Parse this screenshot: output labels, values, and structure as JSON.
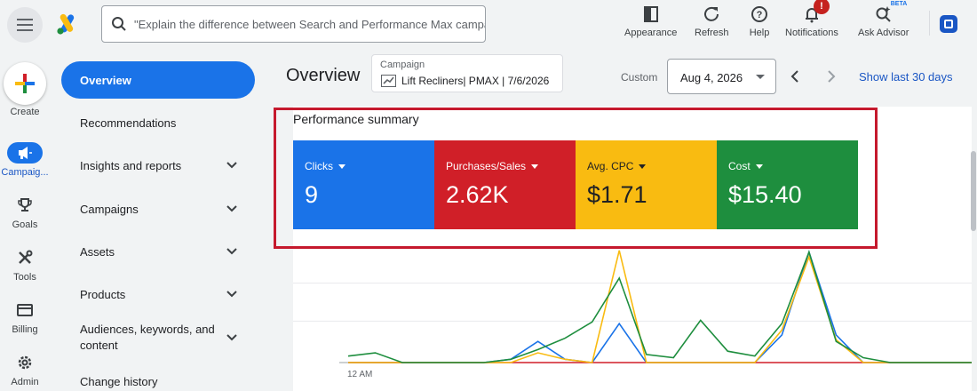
{
  "search": {
    "placeholder": "\"Explain the difference between Search and Performance Max campaigns.\""
  },
  "toolbar": {
    "appearance": "Appearance",
    "refresh": "Refresh",
    "help": "Help",
    "notifications": "Notifications",
    "notifications_badge": "!",
    "ask_advisor": "Ask Advisor",
    "beta": "BETA"
  },
  "rail": {
    "create": "Create",
    "campaigns": "Campaig...",
    "goals": "Goals",
    "tools": "Tools",
    "billing": "Billing",
    "admin": "Admin"
  },
  "nav": {
    "overview": "Overview",
    "recommendations": "Recommendations",
    "insights": "Insights and reports",
    "campaigns": "Campaigns",
    "assets": "Assets",
    "products": "Products",
    "audiences": "Audiences, keywords, and content",
    "change_history": "Change history"
  },
  "header": {
    "title": "Overview",
    "campaign_label": "Campaign",
    "campaign_value": "Lift Recliners| PMAX | 7/6/2026",
    "custom": "Custom",
    "date": "Aug 4, 2026",
    "show_last": "Show last 30 days"
  },
  "summary": {
    "title": "Performance summary",
    "metrics": [
      {
        "name": "Clicks",
        "value": "9"
      },
      {
        "name": "Purchases/Sales",
        "value": "2.62K"
      },
      {
        "name": "Avg. CPC",
        "value": "$1.71"
      },
      {
        "name": "Cost",
        "value": "$15.40"
      }
    ]
  },
  "chart_data": {
    "type": "line",
    "x_tick_label": "12 AM",
    "x": [
      0,
      1,
      2,
      3,
      4,
      5,
      6,
      7,
      8,
      9,
      10,
      11,
      12,
      13,
      14,
      15,
      16,
      17,
      18,
      19,
      20,
      21,
      22,
      23
    ],
    "series": [
      {
        "color": "#1a73e8",
        "values": [
          0,
          0,
          0,
          0,
          0,
          0,
          0.2,
          1.3,
          0.2,
          0,
          2.4,
          0,
          0,
          0,
          0,
          0,
          1.7,
          6.8,
          1.7,
          0,
          0,
          0,
          0,
          0
        ]
      },
      {
        "color": "#d01f28",
        "values": [
          0,
          0,
          0,
          0,
          0,
          0,
          0,
          0,
          0,
          0,
          0,
          0,
          0,
          0,
          0,
          0,
          0,
          0,
          0,
          0,
          0,
          0,
          0,
          0
        ]
      },
      {
        "color": "#f9bb11",
        "values": [
          0,
          0,
          0,
          0,
          0,
          0,
          0,
          0.6,
          0.2,
          0,
          6.9,
          0,
          0,
          0,
          0,
          0,
          2.0,
          6.5,
          1.4,
          0,
          0,
          0,
          0,
          0
        ]
      },
      {
        "color": "#1e8e3e",
        "values": [
          0.4,
          0.6,
          0,
          0,
          0,
          0,
          0.2,
          0.8,
          1.5,
          2.5,
          5.2,
          0.5,
          0.3,
          2.6,
          0.7,
          0.4,
          2.4,
          6.8,
          1.3,
          0.3,
          0,
          0,
          0,
          0
        ]
      }
    ]
  }
}
